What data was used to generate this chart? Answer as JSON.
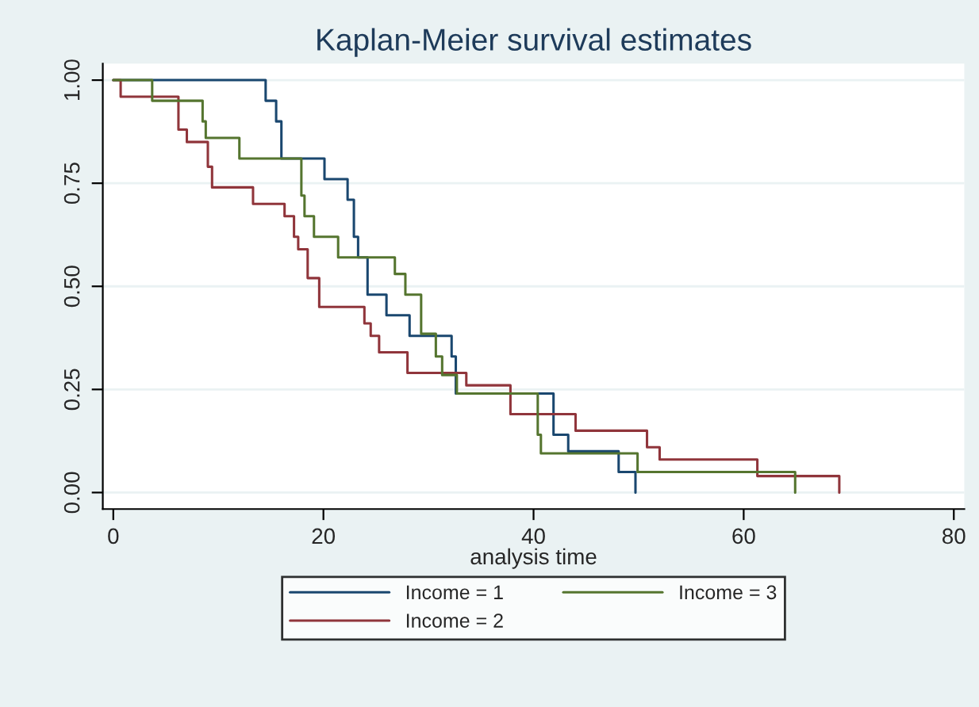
{
  "chart_data": {
    "type": "step",
    "title": "Kaplan-Meier survival estimates",
    "xlabel": "analysis time",
    "xlim": [
      -1,
      81
    ],
    "xticks": [
      0,
      20,
      40,
      60,
      80
    ],
    "ylim": [
      -0.04,
      1.04
    ],
    "yticks": [
      {
        "value": 0,
        "label": "0.00"
      },
      {
        "value": 0.25,
        "label": "0.25"
      },
      {
        "value": 0.5,
        "label": "0.50"
      },
      {
        "value": 0.75,
        "label": "0.75"
      },
      {
        "value": 1,
        "label": "1.00"
      }
    ],
    "grid": "y",
    "legend": "bottom",
    "marker": "none",
    "line_style": "solid",
    "series": [
      {
        "name": "Income = 1",
        "color": "#1a476f",
        "x": [
          0,
          14.5,
          15.5,
          16,
          20.1,
          22.3,
          22.9,
          23.3,
          24.2,
          26,
          28.2,
          32.2,
          32.6,
          41.9,
          43.3,
          48.1,
          49.7
        ],
        "values": [
          1,
          0.95,
          0.9,
          0.81,
          0.76,
          0.71,
          0.62,
          0.57,
          0.48,
          0.43,
          0.38,
          0.33,
          0.24,
          0.14,
          0.1,
          0.05,
          0
        ]
      },
      {
        "name": "Income = 2",
        "color": "#90353b",
        "x": [
          0,
          0.7,
          6.2,
          7,
          9,
          9.4,
          13.3,
          16.3,
          17.2,
          17.6,
          18.5,
          19.6,
          23.9,
          24.5,
          25.3,
          28,
          33.6,
          37.8,
          44,
          50.8,
          52,
          61.3,
          69.1
        ],
        "values": [
          1,
          0.96,
          0.88,
          0.85,
          0.79,
          0.74,
          0.7,
          0.67,
          0.62,
          0.59,
          0.52,
          0.45,
          0.41,
          0.38,
          0.34,
          0.29,
          0.26,
          0.19,
          0.15,
          0.11,
          0.08,
          0.04,
          0
        ]
      },
      {
        "name": "Income = 3",
        "color": "#55752f",
        "x": [
          0,
          3.7,
          8.5,
          8.8,
          12,
          17.9,
          18.2,
          19.1,
          21.4,
          26.8,
          27.8,
          29.3,
          30.7,
          31.3,
          32.7,
          40.4,
          40.7,
          49.9,
          64.9
        ],
        "values": [
          1,
          0.95,
          0.9,
          0.86,
          0.81,
          0.72,
          0.67,
          0.62,
          0.57,
          0.53,
          0.48,
          0.385,
          0.33,
          0.285,
          0.24,
          0.14,
          0.095,
          0.05,
          0
        ]
      }
    ]
  }
}
